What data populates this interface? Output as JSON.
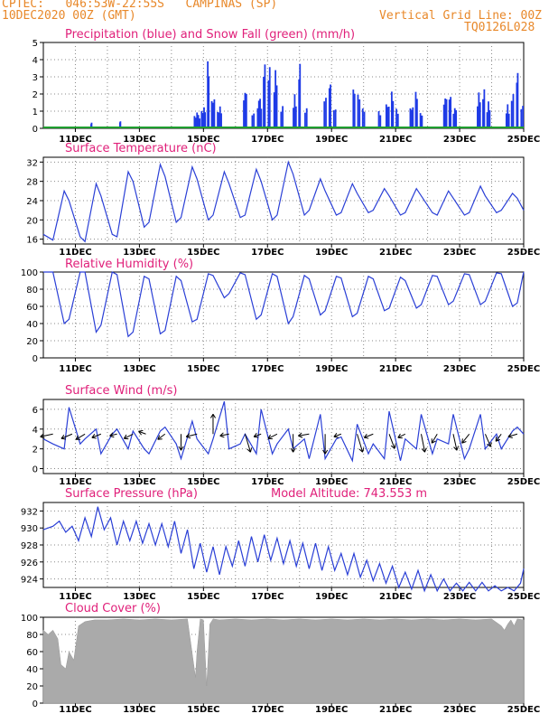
{
  "header": {
    "line1_left": "CPTEC:   046:53W-22:55S   CAMPINAS (SP)",
    "line2_left": "10DEC2020 00Z (GMT)",
    "line2_right": "Vertical Grid Line: 00Z",
    "line3_right": "TQ0126L028"
  },
  "colors": {
    "header": "#e8882a",
    "title": "#e0207a",
    "line": "#2a3fd6",
    "precip": "#1f3be6",
    "snow": "#1e9e2e",
    "cloud": "#aaaaaa",
    "grid": "#888888"
  },
  "x_axis": {
    "start_day": 10,
    "end_day": 25,
    "tick_labels": [
      "11DEC",
      "13DEC",
      "15DEC",
      "17DEC",
      "19DEC",
      "21DEC",
      "23DEC",
      "25DEC"
    ]
  },
  "chart_data": [
    {
      "type": "bar",
      "title": "Precipitation (blue) and Snow Fall (green) (mm/h)",
      "ylim": [
        0,
        5
      ],
      "yticks": [
        0,
        1,
        2,
        3,
        4,
        5
      ],
      "grid": true,
      "series": [
        {
          "name": "Precipitation",
          "color": "#1f3be6",
          "bursts": [
            [
              11.5,
              0.4,
              0.03
            ],
            [
              12.4,
              0.5,
              0.03
            ],
            [
              14.8,
              1.0,
              0.2
            ],
            [
              15.0,
              1.4,
              0.15
            ],
            [
              15.15,
              5.0,
              0.06
            ],
            [
              15.3,
              2.2,
              0.12
            ],
            [
              15.5,
              1.4,
              0.15
            ],
            [
              16.3,
              2.6,
              0.12
            ],
            [
              16.55,
              1.2,
              0.1
            ],
            [
              16.75,
              2.0,
              0.15
            ],
            [
              16.9,
              4.9,
              0.08
            ],
            [
              17.05,
              4.6,
              0.08
            ],
            [
              17.25,
              3.6,
              0.12
            ],
            [
              17.45,
              1.6,
              0.1
            ],
            [
              17.85,
              2.0,
              0.12
            ],
            [
              18.0,
              4.5,
              0.06
            ],
            [
              18.2,
              1.4,
              0.1
            ],
            [
              18.8,
              2.2,
              0.1
            ],
            [
              18.95,
              3.2,
              0.07
            ],
            [
              19.1,
              1.4,
              0.1
            ],
            [
              19.7,
              2.8,
              0.08
            ],
            [
              19.85,
              2.4,
              0.1
            ],
            [
              20.0,
              1.4,
              0.1
            ],
            [
              20.5,
              1.2,
              0.1
            ],
            [
              20.75,
              1.8,
              0.12
            ],
            [
              20.9,
              2.6,
              0.08
            ],
            [
              21.05,
              1.4,
              0.1
            ],
            [
              21.5,
              1.6,
              0.12
            ],
            [
              21.65,
              2.8,
              0.08
            ],
            [
              21.8,
              1.2,
              0.1
            ],
            [
              22.55,
              2.2,
              0.12
            ],
            [
              22.7,
              2.6,
              0.08
            ],
            [
              22.85,
              1.4,
              0.12
            ],
            [
              23.6,
              2.2,
              0.12
            ],
            [
              23.75,
              2.8,
              0.08
            ],
            [
              23.9,
              1.6,
              0.12
            ],
            [
              24.5,
              1.4,
              0.12
            ],
            [
              24.65,
              2.4,
              0.1
            ],
            [
              24.8,
              3.9,
              0.06
            ],
            [
              24.95,
              1.6,
              0.1
            ]
          ]
        },
        {
          "name": "Snow Fall",
          "color": "#1e9e2e",
          "values": [
            0
          ]
        }
      ]
    },
    {
      "type": "line",
      "title": "Surface Temperature (nC)",
      "ylim": [
        15,
        33
      ],
      "yticks": [
        16,
        20,
        24,
        28,
        32
      ],
      "grid": true,
      "x": [
        10.0,
        10.3,
        10.65,
        10.8,
        11.15,
        11.3,
        11.65,
        11.8,
        12.15,
        12.3,
        12.65,
        12.8,
        13.15,
        13.3,
        13.65,
        13.8,
        14.15,
        14.3,
        14.65,
        14.8,
        15.15,
        15.3,
        15.65,
        15.8,
        16.15,
        16.3,
        16.65,
        16.8,
        17.15,
        17.3,
        17.65,
        17.8,
        18.15,
        18.3,
        18.65,
        18.8,
        19.15,
        19.3,
        19.65,
        19.8,
        20.15,
        20.3,
        20.65,
        20.8,
        21.15,
        21.3,
        21.65,
        21.8,
        22.15,
        22.3,
        22.65,
        22.8,
        23.15,
        23.3,
        23.65,
        23.8,
        24.15,
        24.3,
        24.65,
        24.8,
        25.0
      ],
      "y": [
        17.0,
        15.8,
        26.0,
        24.0,
        16.5,
        15.5,
        27.5,
        25.0,
        17.0,
        16.5,
        30.0,
        28.0,
        18.5,
        19.5,
        31.5,
        29.0,
        19.5,
        20.5,
        31.0,
        28.5,
        20.0,
        21.0,
        30.0,
        27.5,
        20.5,
        21.0,
        30.5,
        28.0,
        20.0,
        21.0,
        32.0,
        29.5,
        21.0,
        22.0,
        28.5,
        26.0,
        21.0,
        21.5,
        27.5,
        25.5,
        21.5,
        22.0,
        26.5,
        25.0,
        21.0,
        21.5,
        26.5,
        25.0,
        21.5,
        21.0,
        26.0,
        24.5,
        21.0,
        21.5,
        27.0,
        25.0,
        21.5,
        22.0,
        25.5,
        24.5,
        22.0
      ]
    },
    {
      "type": "line",
      "title": "Relative Humidity (%)",
      "ylim": [
        0,
        100
      ],
      "yticks": [
        0,
        20,
        40,
        60,
        80,
        100
      ],
      "grid": true,
      "x": [
        10.0,
        10.3,
        10.65,
        10.8,
        11.15,
        11.3,
        11.65,
        11.8,
        12.15,
        12.3,
        12.65,
        12.8,
        13.15,
        13.3,
        13.65,
        13.8,
        14.15,
        14.3,
        14.65,
        14.8,
        15.15,
        15.3,
        15.65,
        15.8,
        16.15,
        16.3,
        16.65,
        16.8,
        17.15,
        17.3,
        17.65,
        17.8,
        18.15,
        18.3,
        18.65,
        18.8,
        19.15,
        19.3,
        19.65,
        19.8,
        20.15,
        20.3,
        20.65,
        20.8,
        21.15,
        21.3,
        21.65,
        21.8,
        22.15,
        22.3,
        22.65,
        22.8,
        23.15,
        23.3,
        23.65,
        23.8,
        24.15,
        24.3,
        24.65,
        24.8,
        25.0
      ],
      "y": [
        100,
        100,
        40,
        45,
        100,
        100,
        30,
        38,
        100,
        97,
        25,
        30,
        95,
        92,
        28,
        32,
        95,
        90,
        42,
        45,
        98,
        96,
        70,
        75,
        99,
        97,
        45,
        50,
        98,
        95,
        40,
        48,
        96,
        92,
        50,
        55,
        95,
        93,
        48,
        52,
        95,
        92,
        55,
        58,
        94,
        90,
        58,
        62,
        96,
        95,
        62,
        66,
        98,
        97,
        62,
        66,
        99,
        98,
        60,
        64,
        100
      ]
    },
    {
      "type": "line",
      "title": "Surface Wind (m/s)",
      "ylim": [
        -0.5,
        7
      ],
      "yticks": [
        0,
        2,
        4,
        6
      ],
      "grid": true,
      "x": [
        10.0,
        10.3,
        10.65,
        10.8,
        11.15,
        11.3,
        11.65,
        11.8,
        12.15,
        12.3,
        12.65,
        12.8,
        13.15,
        13.3,
        13.65,
        13.8,
        14.15,
        14.3,
        14.65,
        14.8,
        15.15,
        15.3,
        15.65,
        15.8,
        16.15,
        16.3,
        16.65,
        16.8,
        17.15,
        17.3,
        17.65,
        17.8,
        18.15,
        18.3,
        18.65,
        18.8,
        19.15,
        19.3,
        19.65,
        19.8,
        20.15,
        20.3,
        20.65,
        20.8,
        21.15,
        21.3,
        21.65,
        21.8,
        22.15,
        22.3,
        22.65,
        22.8,
        23.15,
        23.3,
        23.65,
        23.8,
        24.15,
        24.3,
        24.65,
        24.8,
        25.0
      ],
      "y": [
        3.0,
        2.5,
        2.0,
        6.2,
        2.5,
        3.0,
        4.0,
        1.5,
        3.5,
        4.0,
        2.0,
        3.8,
        2.0,
        1.5,
        3.8,
        4.2,
        2.5,
        1.0,
        4.8,
        3.0,
        1.5,
        3.0,
        6.8,
        2.0,
        2.5,
        3.5,
        1.5,
        6.0,
        1.5,
        2.5,
        4.0,
        2.0,
        3.0,
        1.0,
        5.5,
        1.0,
        3.0,
        3.2,
        0.8,
        4.5,
        1.5,
        2.5,
        1.0,
        5.8,
        0.8,
        3.0,
        2.0,
        5.5,
        1.5,
        3.0,
        2.5,
        5.5,
        1.0,
        2.0,
        5.5,
        2.0,
        3.5,
        2.0,
        3.8,
        4.2,
        3.5
      ],
      "wind_barbs": [
        {
          "day": 10.3,
          "dx": -14,
          "dy": 3
        },
        {
          "day": 10.9,
          "dx": -12,
          "dy": 5
        },
        {
          "day": 11.3,
          "dx": -10,
          "dy": 6
        },
        {
          "day": 11.8,
          "dx": -10,
          "dy": 4
        },
        {
          "day": 12.3,
          "dx": -8,
          "dy": 2
        },
        {
          "day": 12.8,
          "dx": -10,
          "dy": 5
        },
        {
          "day": 13.2,
          "dx": -8,
          "dy": -3
        },
        {
          "day": 13.8,
          "dx": -8,
          "dy": 6
        },
        {
          "day": 14.3,
          "dx": 0,
          "dy": 18
        },
        {
          "day": 14.8,
          "dx": -12,
          "dy": 3
        },
        {
          "day": 15.3,
          "dx": 0,
          "dy": -22
        },
        {
          "day": 15.8,
          "dx": -10,
          "dy": 2
        },
        {
          "day": 16.3,
          "dx": 6,
          "dy": 20
        },
        {
          "day": 16.8,
          "dx": -8,
          "dy": 3
        },
        {
          "day": 17.3,
          "dx": -10,
          "dy": 5
        },
        {
          "day": 17.8,
          "dx": 0,
          "dy": 20
        },
        {
          "day": 18.3,
          "dx": -12,
          "dy": 2
        },
        {
          "day": 18.8,
          "dx": 0,
          "dy": 22
        },
        {
          "day": 19.3,
          "dx": -8,
          "dy": 3
        },
        {
          "day": 19.8,
          "dx": 6,
          "dy": 20
        },
        {
          "day": 20.3,
          "dx": -10,
          "dy": 4
        },
        {
          "day": 20.8,
          "dx": 6,
          "dy": 16
        },
        {
          "day": 21.3,
          "dx": -8,
          "dy": 4
        },
        {
          "day": 21.8,
          "dx": 4,
          "dy": 20
        },
        {
          "day": 22.3,
          "dx": -6,
          "dy": 10
        },
        {
          "day": 22.8,
          "dx": 4,
          "dy": 18
        },
        {
          "day": 23.3,
          "dx": -8,
          "dy": 10
        },
        {
          "day": 23.8,
          "dx": 6,
          "dy": 14
        },
        {
          "day": 24.3,
          "dx": -6,
          "dy": 8
        },
        {
          "day": 24.8,
          "dx": -10,
          "dy": 3
        }
      ]
    },
    {
      "type": "line",
      "title": "Surface Pressure (hPa)",
      "annotation": "Model Altitude: 743.553 m",
      "ylim": [
        923,
        933
      ],
      "yticks": [
        924,
        926,
        928,
        930,
        932
      ],
      "grid": true,
      "x": [
        10.0,
        10.3,
        10.5,
        10.7,
        10.9,
        11.1,
        11.3,
        11.5,
        11.7,
        11.9,
        12.1,
        12.3,
        12.5,
        12.7,
        12.9,
        13.1,
        13.3,
        13.5,
        13.7,
        13.9,
        14.1,
        14.3,
        14.5,
        14.7,
        14.9,
        15.1,
        15.3,
        15.5,
        15.7,
        15.9,
        16.1,
        16.3,
        16.5,
        16.7,
        16.9,
        17.1,
        17.3,
        17.5,
        17.7,
        17.9,
        18.1,
        18.3,
        18.5,
        18.7,
        18.9,
        19.1,
        19.3,
        19.5,
        19.7,
        19.9,
        20.1,
        20.3,
        20.5,
        20.7,
        20.9,
        21.1,
        21.3,
        21.5,
        21.7,
        21.9,
        22.1,
        22.3,
        22.5,
        22.7,
        22.9,
        23.1,
        23.3,
        23.5,
        23.7,
        23.9,
        24.1,
        24.3,
        24.5,
        24.7,
        24.9,
        25.0
      ],
      "y": [
        929.8,
        930.2,
        930.8,
        929.5,
        930.2,
        928.5,
        931.2,
        929.0,
        932.5,
        929.8,
        931.2,
        928.0,
        930.8,
        928.5,
        930.8,
        928.2,
        930.5,
        928.0,
        930.5,
        927.8,
        930.8,
        927.0,
        929.8,
        925.2,
        928.2,
        924.8,
        927.8,
        924.5,
        927.8,
        925.5,
        928.5,
        925.5,
        929.0,
        926.0,
        929.2,
        926.2,
        928.8,
        925.8,
        928.5,
        925.5,
        928.2,
        925.2,
        928.2,
        925.0,
        927.8,
        925.0,
        927.0,
        924.5,
        927.0,
        924.2,
        926.2,
        923.8,
        925.8,
        923.5,
        925.5,
        923.0,
        924.8,
        922.8,
        925.0,
        922.6,
        924.5,
        922.6,
        924.0,
        922.6,
        923.5,
        922.6,
        923.6,
        922.6,
        923.6,
        922.6,
        923.2,
        922.6,
        923.0,
        922.6,
        923.5,
        925.2
      ]
    },
    {
      "type": "area",
      "title": "Cloud Cover (%)",
      "ylim": [
        0,
        100
      ],
      "yticks": [
        0,
        20,
        40,
        60,
        80,
        100
      ],
      "grid": true,
      "x": [
        10.0,
        10.15,
        10.3,
        10.45,
        10.55,
        10.7,
        10.8,
        10.95,
        11.1,
        11.3,
        11.6,
        12.0,
        12.5,
        13.0,
        13.5,
        14.0,
        14.5,
        14.75,
        14.8,
        14.9,
        15.0,
        15.1,
        15.2,
        15.3,
        15.5,
        16.0,
        16.5,
        17.0,
        17.5,
        18.0,
        18.5,
        19.0,
        19.5,
        20.0,
        20.5,
        21.0,
        21.5,
        22.0,
        22.5,
        23.0,
        23.5,
        24.0,
        24.3,
        24.4,
        24.5,
        24.6,
        24.7,
        24.8,
        25.0
      ],
      "y": [
        85,
        80,
        85,
        75,
        45,
        40,
        60,
        50,
        90,
        95,
        97,
        97,
        98,
        97,
        98,
        97,
        98,
        30,
        60,
        98,
        97,
        20,
        92,
        98,
        97,
        98,
        97,
        98,
        97,
        98,
        97,
        98,
        97,
        98,
        97,
        98,
        97,
        98,
        97,
        98,
        97,
        98,
        90,
        85,
        92,
        97,
        90,
        98,
        97
      ]
    }
  ]
}
